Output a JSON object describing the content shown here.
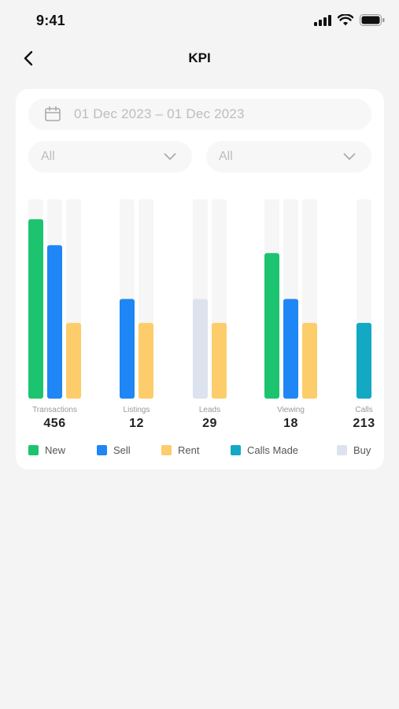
{
  "status_bar": {
    "time": "9:41"
  },
  "nav": {
    "title": "KPI"
  },
  "filters": {
    "date_range": "01 Dec 2023 – 01 Dec 2023",
    "select_1": "All",
    "select_2": "All"
  },
  "colors": {
    "new": "#1cc46f",
    "sell": "#1e86f5",
    "rent": "#fccd6a",
    "calls_made": "#13a8c4",
    "buy": "#dde3ee",
    "track": "#f6f6f6"
  },
  "legend": [
    {
      "label": "New",
      "color": "#1cc46f"
    },
    {
      "label": "Sell",
      "color": "#1e86f5"
    },
    {
      "label": "Rent",
      "color": "#fccd6a"
    },
    {
      "label": "Calls Made",
      "color": "#13a8c4"
    },
    {
      "label": "Buy",
      "color": "#dde3ee"
    }
  ],
  "chart_data": {
    "type": "bar",
    "grid": false,
    "ylim": [
      0,
      100
    ],
    "categories": [
      {
        "label": "Transactions",
        "total": "456",
        "bars": [
          {
            "series": "New",
            "value": 90
          },
          {
            "series": "Sell",
            "value": 77
          },
          {
            "series": "Rent",
            "value": 38
          }
        ]
      },
      {
        "label": "Listings",
        "total": "12",
        "bars": [
          {
            "series": "Sell",
            "value": 50
          },
          {
            "series": "Rent",
            "value": 38
          }
        ]
      },
      {
        "label": "Leads",
        "total": "29",
        "bars": [
          {
            "series": "Buy",
            "value": 50
          },
          {
            "series": "Rent",
            "value": 38
          }
        ]
      },
      {
        "label": "Viewing",
        "total": "18",
        "bars": [
          {
            "series": "New",
            "value": 73
          },
          {
            "series": "Sell",
            "value": 50
          },
          {
            "series": "Rent",
            "value": 38
          }
        ]
      },
      {
        "label": "Calls",
        "total": "213",
        "bars": [
          {
            "series": "Calls Made",
            "value": 38
          }
        ]
      }
    ]
  }
}
